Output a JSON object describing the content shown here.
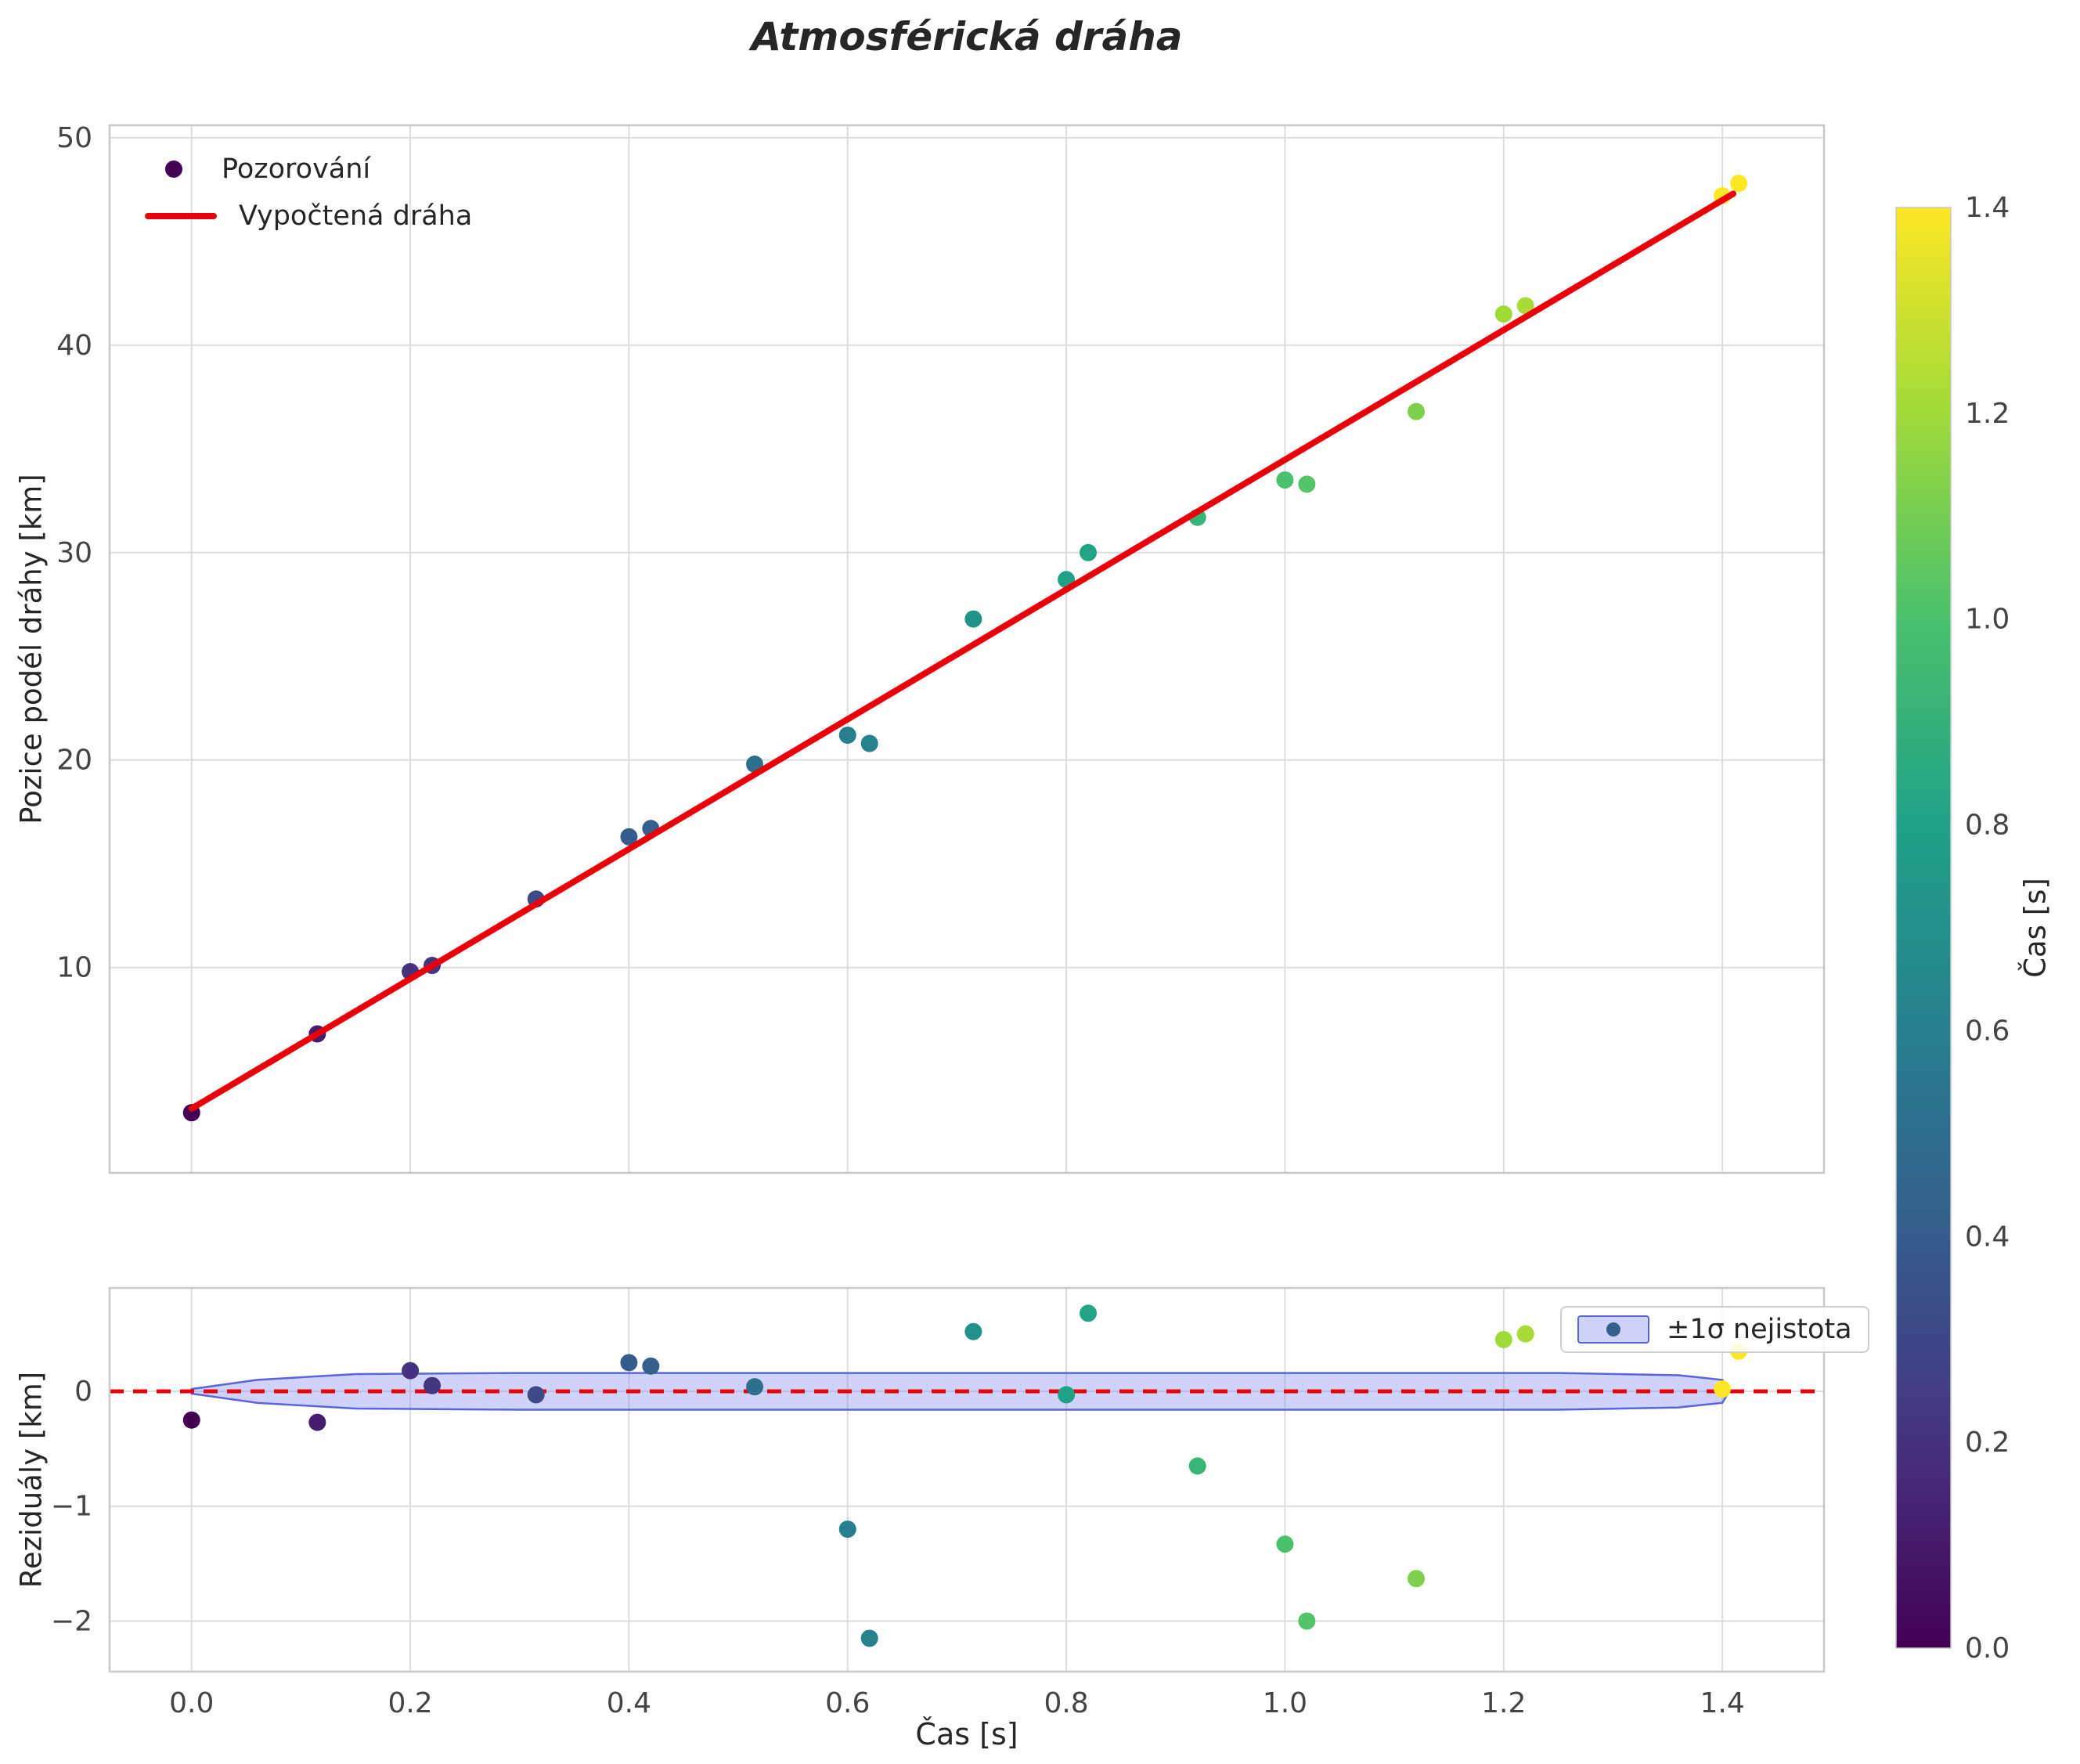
{
  "title": "Atmosférická dráha",
  "legend": {
    "observations": "Pozorování",
    "fit": "Vypočtená dráha",
    "band": "±1σ nejistota"
  },
  "colorbar": {
    "label": "Čas [s]",
    "min": 0.0,
    "max": 1.4,
    "ticks": [
      0.0,
      0.2,
      0.4,
      0.6,
      0.8,
      1.0,
      1.2,
      1.4
    ]
  },
  "colors": {
    "fit_line": "#e8000b",
    "zero_line": "#e8000b",
    "band_fill": "rgba(108,118,236,0.32)",
    "band_edge": "#5a64dc",
    "grid": "#dcdcdc",
    "frame": "#c8c8c8",
    "title_text": "#262626",
    "tick_text": "#444444",
    "viridis": [
      "#440154",
      "#46327e",
      "#365c8d",
      "#277f8e",
      "#1fa187",
      "#4ac16d",
      "#a0da39",
      "#fde725"
    ]
  },
  "chart_data": {
    "type": "scatter",
    "title": "Atmosférická dráha",
    "colormap": "viridis",
    "color_by": "t",
    "colormap_range": [
      0.0,
      1.4
    ],
    "points": [
      {
        "t": 0.0,
        "pos": 3.0,
        "res": -0.25
      },
      {
        "t": 0.115,
        "pos": 6.8,
        "res": -0.27
      },
      {
        "t": 0.2,
        "pos": 9.8,
        "res": 0.18
      },
      {
        "t": 0.22,
        "pos": 10.1,
        "res": 0.05
      },
      {
        "t": 0.315,
        "pos": 13.3,
        "res": -0.03
      },
      {
        "t": 0.4,
        "pos": 16.3,
        "res": 0.25
      },
      {
        "t": 0.42,
        "pos": 16.7,
        "res": 0.22
      },
      {
        "t": 0.515,
        "pos": 19.8,
        "res": 0.04
      },
      {
        "t": 0.6,
        "pos": 21.2,
        "res": -1.2
      },
      {
        "t": 0.62,
        "pos": 20.8,
        "res": -2.15
      },
      {
        "t": 0.715,
        "pos": 26.8,
        "res": 0.52
      },
      {
        "t": 0.8,
        "pos": 28.7,
        "res": -0.03
      },
      {
        "t": 0.82,
        "pos": 30.0,
        "res": 0.68
      },
      {
        "t": 0.92,
        "pos": 31.7,
        "res": -0.65
      },
      {
        "t": 1.0,
        "pos": 33.5,
        "res": -1.33
      },
      {
        "t": 1.02,
        "pos": 33.3,
        "res": -2.0
      },
      {
        "t": 1.12,
        "pos": 36.8,
        "res": -1.63
      },
      {
        "t": 1.2,
        "pos": 41.5,
        "res": 0.45
      },
      {
        "t": 1.22,
        "pos": 41.9,
        "res": 0.5
      },
      {
        "t": 1.4,
        "pos": 47.2,
        "res": 0.02
      },
      {
        "t": 1.415,
        "pos": 47.8,
        "res": 0.35
      }
    ],
    "fit_line": {
      "label": "Vypočtená dráha",
      "t": [
        0.0,
        1.41
      ],
      "pos": [
        3.2,
        47.3
      ]
    },
    "band": {
      "label": "±1σ nejistota",
      "profile": [
        [
          0.0,
          0.02
        ],
        [
          0.06,
          0.1
        ],
        [
          0.15,
          0.15
        ],
        [
          0.3,
          0.16
        ],
        [
          1.25,
          0.16
        ],
        [
          1.36,
          0.14
        ],
        [
          1.4,
          0.1
        ],
        [
          1.405,
          0.02
        ]
      ]
    },
    "panels": {
      "top": {
        "ylabel": "Pozice podél dráhy [km]",
        "xlim": [
          -0.075,
          1.493
        ],
        "ylim": [
          0.1,
          50.6
        ],
        "xticks": [
          0.0,
          0.2,
          0.4,
          0.6,
          0.8,
          1.0,
          1.2,
          1.4
        ],
        "yticks": [
          10,
          20,
          30,
          40,
          50
        ],
        "grid": true
      },
      "bottom": {
        "ylabel": "Reziduály [km]",
        "xlabel": "Čas [s]",
        "xlim": [
          -0.075,
          1.493
        ],
        "ylim": [
          -2.44,
          0.9
        ],
        "xticks": [
          0.0,
          0.2,
          0.4,
          0.6,
          0.8,
          1.0,
          1.2,
          1.4
        ],
        "yticks": [
          0,
          -1,
          -2
        ],
        "zero_line": 0,
        "grid": true
      }
    }
  }
}
